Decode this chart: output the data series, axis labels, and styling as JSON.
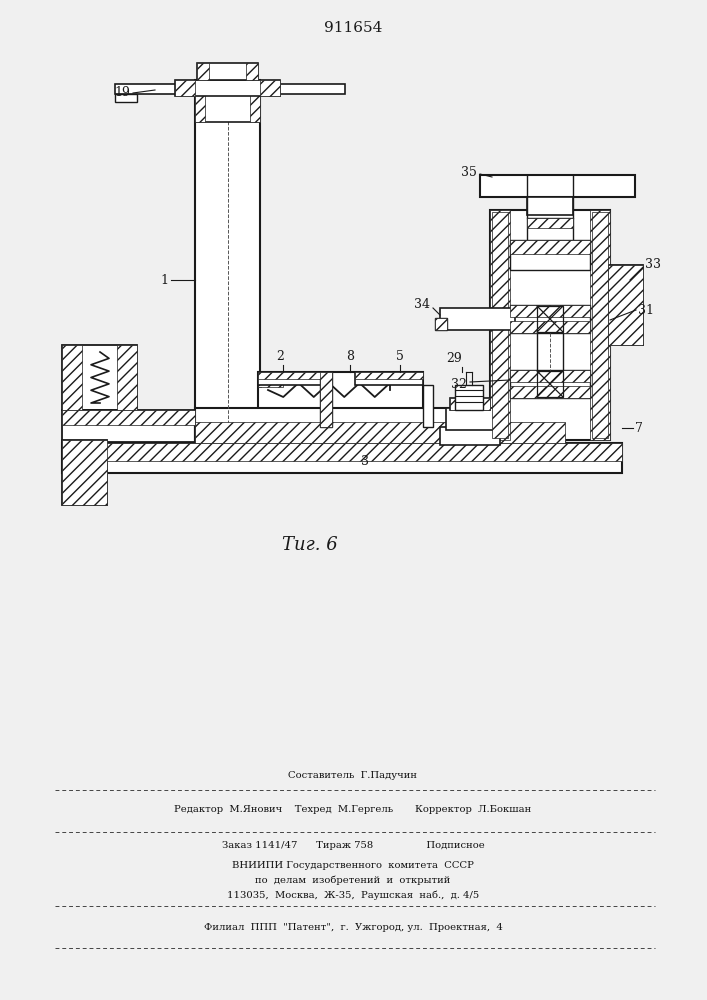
{
  "title": "911654",
  "fig_label": "Τиг. 6",
  "bg": "#f0f0f0",
  "lc": "#1a1a1a",
  "white": "#ffffff",
  "footer": {
    "line1": "Составитель  Г.Падучин",
    "line2": "Редактор  М.Янович    Техред  М.Гергель       Корректор  Л.Бокшан",
    "line3": "Заказ 1141/47      Тираж 758                 Подписное",
    "line4": "ВНИИПИ Государственного  комитета  СССР",
    "line5": "по  делам  изобретений  и  открытий",
    "line6": "113035,  Москва,  Ж-35,  Раушская  наб.,  д. 4/5",
    "line7": "Филиал  ППП  \"Патент\",  г.  Ужгород, ул.  Проектная,  4"
  }
}
